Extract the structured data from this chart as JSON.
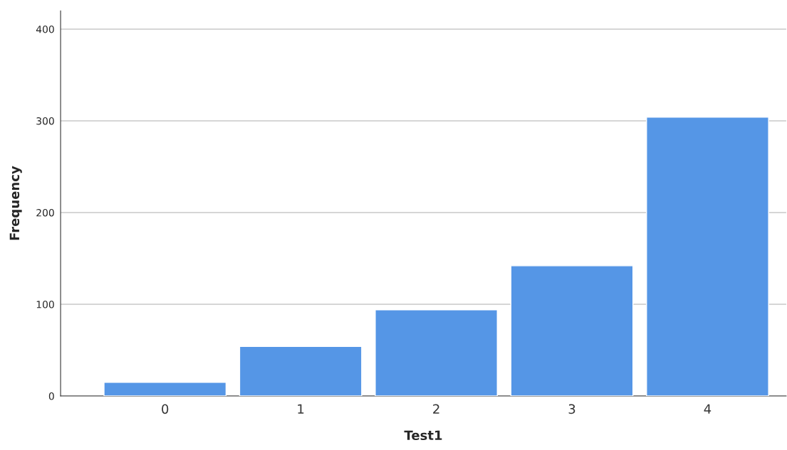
{
  "chart_data": {
    "type": "bar",
    "xlabel": "Test1",
    "ylabel": "Frequency",
    "categories": [
      "0",
      "1",
      "2",
      "3",
      "4"
    ],
    "values": [
      15,
      54,
      94,
      142,
      304
    ],
    "color": "#5596e6",
    "ylim": [
      0,
      420
    ],
    "yticks": [
      0,
      100,
      200,
      300,
      400
    ],
    "grid": "y"
  }
}
